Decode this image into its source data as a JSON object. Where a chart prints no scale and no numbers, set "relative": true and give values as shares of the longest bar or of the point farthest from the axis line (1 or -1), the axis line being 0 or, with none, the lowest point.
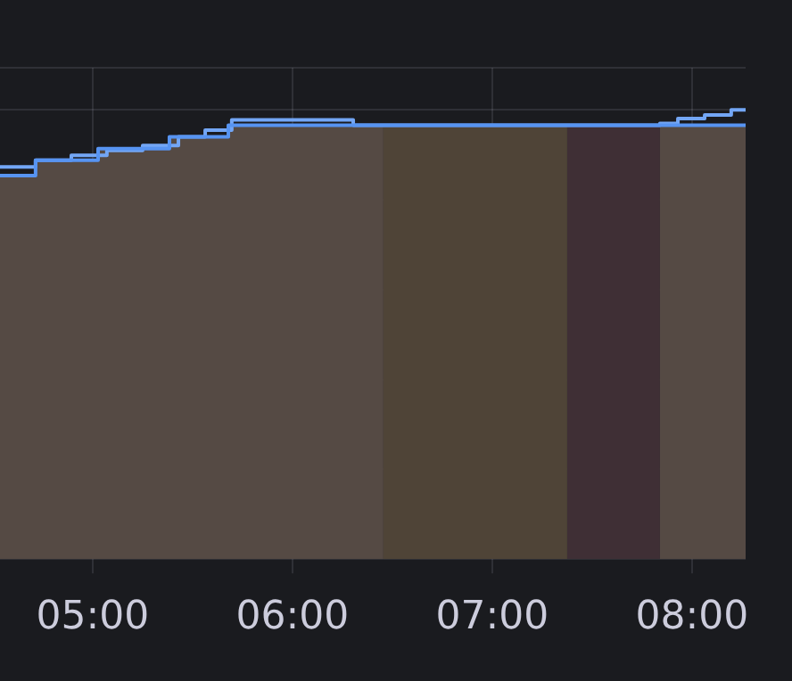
{
  "chart_data": {
    "type": "step",
    "relative": true,
    "xlim": [
      4.536,
      8.268
    ],
    "xticks": [
      {
        "value": 5,
        "label": "05:00"
      },
      {
        "value": 6,
        "label": "06:00"
      },
      {
        "value": 7,
        "label": "07:00"
      },
      {
        "value": 8,
        "label": "08:00"
      }
    ],
    "series": [
      {
        "color": "#73a6f5",
        "x": [
          4.536,
          4.714,
          4.893,
          5.071,
          5.25,
          5.429,
          5.563,
          5.696,
          6.304,
          7.839,
          7.929,
          8.063,
          8.196,
          8.25,
          8.268
        ],
        "values": [
          0.873,
          0.888,
          0.899,
          0.91,
          0.921,
          0.94,
          0.955,
          0.978,
          0.966,
          0.97,
          0.981,
          0.989,
          1.0,
          1.0,
          1.0
        ]
      },
      {
        "color": "#5794f2",
        "x": [
          4.536,
          4.714,
          5.027,
          5.384,
          5.679,
          8.268
        ],
        "values": [
          0.854,
          0.888,
          0.914,
          0.94,
          0.966,
          0.966
        ]
      }
    ],
    "bands": [
      {
        "axis": "x",
        "from": 4.536,
        "to": 6.455,
        "color": "#554a44"
      },
      {
        "axis": "x",
        "from": 6.455,
        "to": 7.375,
        "color": "#4f4437"
      },
      {
        "axis": "x",
        "from": 7.375,
        "to": 7.839,
        "color": "#3f2f35"
      },
      {
        "axis": "x",
        "from": 7.839,
        "to": 8.268,
        "color": "#554a44"
      }
    ],
    "grid": true
  }
}
